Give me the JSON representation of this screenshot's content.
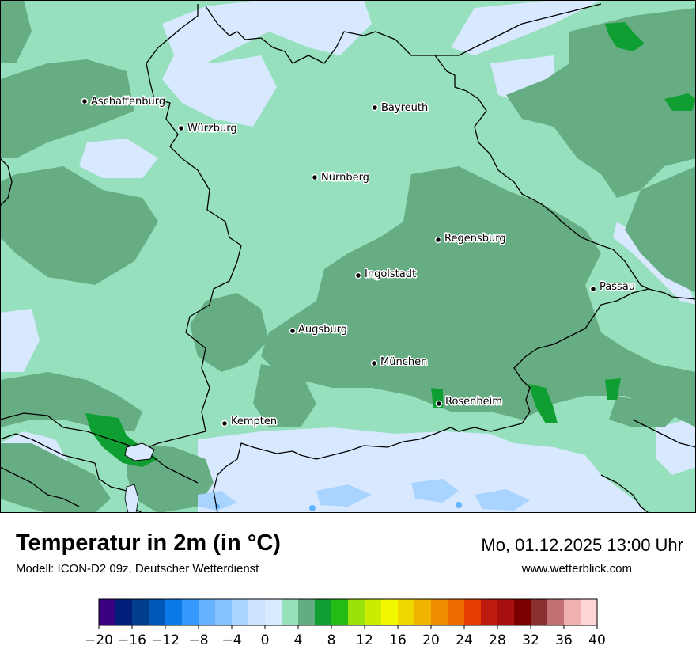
{
  "header": {
    "title": "Temperatur in 2m (in °C)",
    "subtitle": "Modell: ICON-D2 09z, Deutscher Wetterdienst",
    "datetime": "Mo, 01.12.2025 13:00 Uhr",
    "website": "www.wetterblick.com"
  },
  "cities": [
    {
      "id": "aschaffenburg",
      "name": "Aschaffenburg"
    },
    {
      "id": "wuerzburg",
      "name": "Würzburg"
    },
    {
      "id": "bayreuth",
      "name": "Bayreuth"
    },
    {
      "id": "nuernberg",
      "name": "Nürnberg"
    },
    {
      "id": "regensburg",
      "name": "Regensburg"
    },
    {
      "id": "ingolstadt",
      "name": "Ingolstadt"
    },
    {
      "id": "passau",
      "name": "Passau"
    },
    {
      "id": "augsburg",
      "name": "Augsburg"
    },
    {
      "id": "muenchen",
      "name": "München"
    },
    {
      "id": "rosenheim",
      "name": "Rosenheim"
    },
    {
      "id": "kempten",
      "name": "Kempten"
    }
  ],
  "legend": {
    "min": -20,
    "max": 40,
    "step": 2,
    "tick_labels": [
      "−20",
      "−16",
      "−12",
      "−8",
      "−4",
      "0",
      "4",
      "8",
      "12",
      "16",
      "20",
      "24",
      "28",
      "32",
      "36",
      "40"
    ],
    "colors": [
      "#3a0080",
      "#001f7a",
      "#003e8c",
      "#0057b8",
      "#0a78e6",
      "#3399ff",
      "#66b3ff",
      "#85c2ff",
      "#a8d4ff",
      "#cce4ff",
      "#d9ecff",
      "#96e0bc",
      "#62ae82",
      "#0f9e32",
      "#23bb14",
      "#9ae20a",
      "#cbec00",
      "#f2f700",
      "#f0d700",
      "#f0b400",
      "#ef8c00",
      "#ef6b00",
      "#e63c00",
      "#bf1a10",
      "#a80f10",
      "#7a0000",
      "#8a3030",
      "#c07070",
      "#f0b0b0",
      "#ffd4d4"
    ]
  },
  "map_colors": {
    "sea_cold": "#d7e8ff",
    "light_green": "#97e0bd",
    "mid_green": "#66ad84",
    "dark_green": "#0f9e32",
    "pale_blue": "#a8d4ff",
    "bright_blue": "#66b3ff",
    "border": "#000000"
  }
}
